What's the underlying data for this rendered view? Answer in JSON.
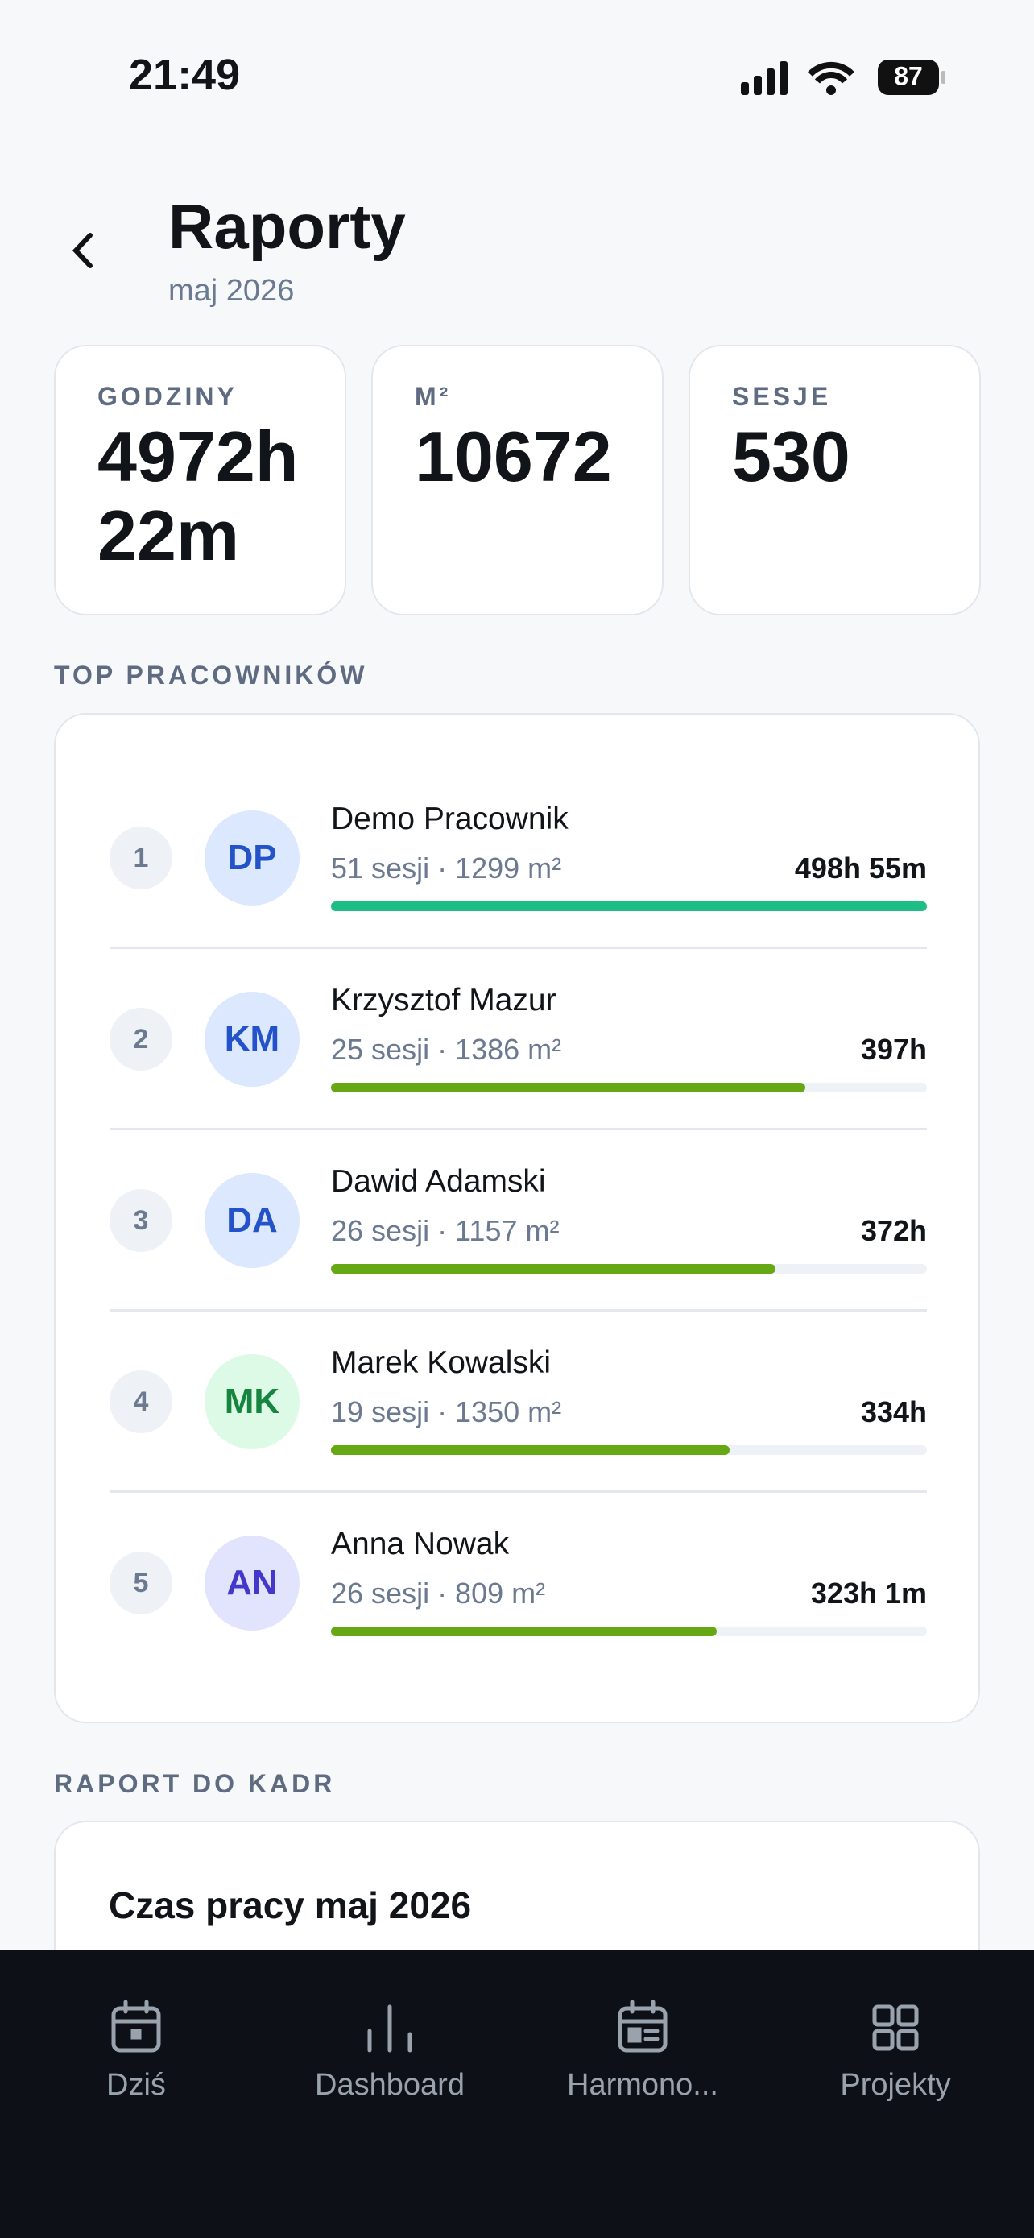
{
  "status_bar": {
    "time": "21:49",
    "battery": "87"
  },
  "header": {
    "title": "Raporty",
    "subtitle": "maj 2026"
  },
  "stats": [
    {
      "label": "GODZINY",
      "value": "4972h 22m"
    },
    {
      "label": "M²",
      "value": "10672"
    },
    {
      "label": "SESJE",
      "value": "530"
    }
  ],
  "top_section": {
    "title": "TOP PRACOWNIKÓW",
    "items": [
      {
        "rank": "1",
        "initials": "DP",
        "name": "Demo Pracownik",
        "details": "51 sesji · 1299 m²",
        "hours": 498.917,
        "hours_label": "498h 55m",
        "avatar_bg": "#dbe8fd",
        "avatar_fg": "#2453c9",
        "bar_color": "#1ebd86"
      },
      {
        "rank": "2",
        "initials": "KM",
        "name": "Krzysztof Mazur",
        "details": "25 sesji · 1386 m²",
        "hours": 397,
        "hours_label": "397h",
        "avatar_bg": "#dbe8fd",
        "avatar_fg": "#2453c9",
        "bar_color": "#65a814"
      },
      {
        "rank": "3",
        "initials": "DA",
        "name": "Dawid Adamski",
        "details": "26 sesji · 1157 m²",
        "hours": 372,
        "hours_label": "372h",
        "avatar_bg": "#dbe8fd",
        "avatar_fg": "#2453c9",
        "bar_color": "#65a814"
      },
      {
        "rank": "4",
        "initials": "MK",
        "name": "Marek Kowalski",
        "details": "19 sesji · 1350 m²",
        "hours": 334,
        "hours_label": "334h",
        "avatar_bg": "#dcfae6",
        "avatar_fg": "#17853f",
        "bar_color": "#65a814"
      },
      {
        "rank": "5",
        "initials": "AN",
        "name": "Anna Nowak",
        "details": "26 sesji · 809 m²",
        "hours": 323.017,
        "hours_label": "323h 1m",
        "avatar_bg": "#e2e3fc",
        "avatar_fg": "#4338ca",
        "bar_color": "#65a814"
      }
    ]
  },
  "report_section": {
    "title": "RAPORT DO KADR",
    "card_title": "Czas pracy maj 2026"
  },
  "tab_bar": {
    "tabs": [
      "Dziś",
      "Dashboard",
      "Harmono...",
      "Projekty"
    ]
  }
}
